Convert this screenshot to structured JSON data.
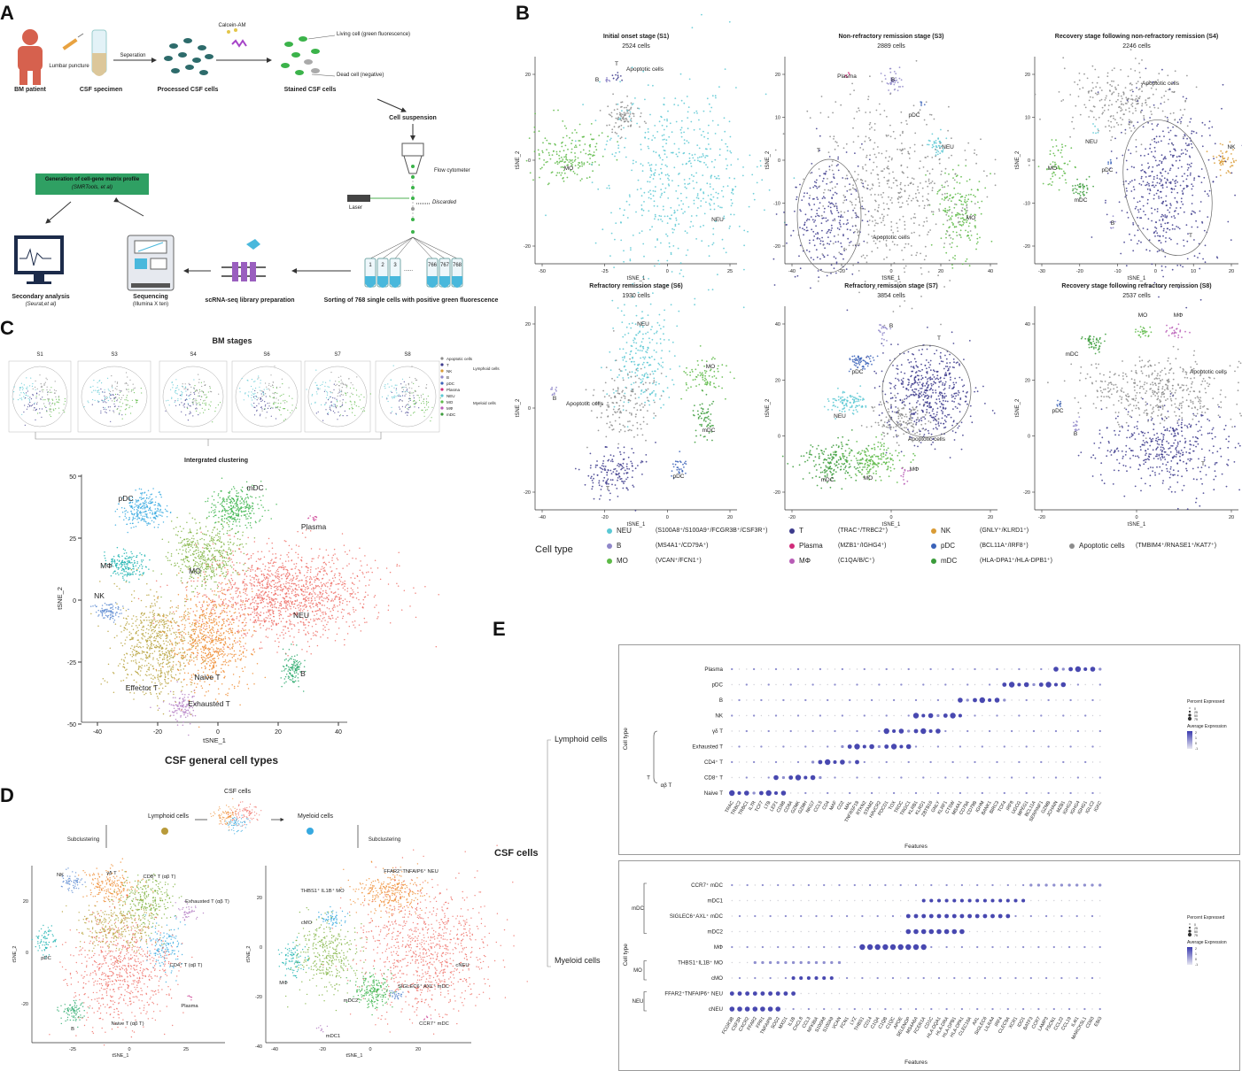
{
  "panels": {
    "a": "A",
    "b": "B",
    "c": "C",
    "d": "D",
    "e": "E"
  },
  "colors": {
    "NEU": "#5bc8d4",
    "B": "#8f87c9",
    "MO": "#5dba47",
    "T": "#3c3a8c",
    "Plasma": "#d12b7a",
    "MPhi": "#b85cb6",
    "NK": "#d99b35",
    "pDC": "#3a62b8",
    "mDC": "#3a9b3a",
    "Apoptotic": "#8c8c8c",
    "c_NEU": "#ef6f66",
    "c_pDC": "#37a9e0",
    "c_mDC": "#39b44a",
    "c_MPhi": "#1bb3b0",
    "c_MO": "#7fb341",
    "c_NK": "#5d8bd1",
    "c_Effector": "#b7a23c",
    "c_Naive": "#ee8c32",
    "c_Exhausted": "#b27ac2",
    "c_B": "#27a86a",
    "c_Plasma": "#d04f9c",
    "green_box": "#2fa063",
    "dot_blue": "#4848b0",
    "dot_grey": "#cfcfd6"
  },
  "panelA": {
    "bm_patient": "BM patient",
    "lumbar": "Lumbar puncture",
    "csf_specimen": "CSF specimen",
    "separation": "Seperation",
    "processed": "Processed CSF cells",
    "calcein": "Calcein-AM",
    "stained": "Stained CSF cells",
    "living": "Living cell (green fluorescence)",
    "dead": "Dead cell (negative)",
    "suspension": "Cell suspension",
    "flow": "Flow cytometer",
    "laser": "Laser",
    "discarded": "Discarded",
    "tubes": [
      "1",
      "2",
      "3",
      "766",
      "767",
      "768"
    ],
    "tube_dots": "......",
    "sorting": "Sorting of 768 single cells with positive green fluorescence",
    "library": "scRNA-seq library preparation",
    "seq": "Sequencing",
    "seq_sub": "(Illumina X ten)",
    "secondary": "Secondary analysis",
    "secondary_sub": "(Seurat,et al)",
    "matrix_title": "Generation of cell-gene matrix profile",
    "matrix_sub": "(SMRTools, et al)"
  },
  "panelB": {
    "plots": [
      {
        "title": "Initial onset stage (S1)",
        "cells": "2524 cells",
        "labels": [
          "B",
          "T",
          "Apoptotic cells",
          "MO",
          "NEU"
        ]
      },
      {
        "title": "Non-refractory remission stage (S3)",
        "cells": "2889 cells",
        "labels": [
          "Plasma",
          "B",
          "pDC",
          "T",
          "NEU",
          "MO",
          "Apoptotic cells"
        ]
      },
      {
        "title": "Recovery stage following non-refractory remission (S4)",
        "cells": "2246 cells",
        "labels": [
          "Apoptotic cells",
          "NEU",
          "MO",
          "pDC",
          "mDC",
          "NK",
          "B",
          "T"
        ]
      },
      {
        "title": "Refractory remission stage (S6)",
        "cells": "1930 cells",
        "labels": [
          "NEU",
          "MO",
          "B",
          "Apoptotic cells",
          "mDC",
          "pDC",
          "T"
        ]
      },
      {
        "title": "Refractory remission stage (S7)",
        "cells": "3854 cells",
        "labels": [
          "B",
          "T",
          "pDC",
          "NEU",
          "Apoptotic cells",
          "mDC",
          "MO",
          "MΦ"
        ]
      },
      {
        "title": "Recovery stage following refractory remission (S8)",
        "cells": "2537 cells",
        "labels": [
          "MO",
          "MΦ",
          "mDC",
          "Apoptotic cells",
          "pDC",
          "B",
          "T"
        ]
      }
    ],
    "xaxis": "tSNE_1",
    "yaxis": "tSNE_2",
    "ticks1x": [
      "-50",
      "-25",
      "0",
      "25"
    ],
    "ticks1y": [
      "20",
      "0",
      "-20"
    ],
    "ticks2x": [
      "-40",
      "-20",
      "0",
      "20",
      "40"
    ],
    "ticks2y": [
      "20",
      "10",
      "0",
      "-10",
      "-20"
    ],
    "ticks3x": [
      "-30",
      "-20",
      "-10",
      "0",
      "10",
      "20"
    ],
    "ticks3y": [
      "20",
      "10",
      "0",
      "-10",
      "-20"
    ],
    "ticks4x": [
      "-40",
      "-20",
      "0",
      "20"
    ],
    "ticks4y": [
      "20",
      "0",
      "-20"
    ],
    "ticks5x": [
      "-20",
      "0",
      "20"
    ],
    "ticks5y": [
      "40",
      "20",
      "0",
      "-20"
    ],
    "ticks6x": [
      "-20",
      "0",
      "20"
    ],
    "ticks6y": [
      "40",
      "20",
      "0",
      "-20"
    ],
    "legend_title": "Cell type",
    "legend": [
      {
        "name": "NEU",
        "markers": "(S100A8⁺/S100A9⁺/FCGR3B⁺/CSF3R⁺)"
      },
      {
        "name": "B",
        "markers": "(MS4A1⁺/CD79A⁺)"
      },
      {
        "name": "MO",
        "markers": "(VCAN⁺/FCN1⁺)"
      },
      {
        "name": "T",
        "markers": "(TRAC⁺/TRBC2⁺)"
      },
      {
        "name": "Plasma",
        "markers": "(MZB1⁺/IGHG4⁺)"
      },
      {
        "name": "MΦ",
        "markers": "(C1QA/B/C⁺)"
      },
      {
        "name": "NK",
        "markers": "(GNLY⁺/KLRD1⁺)"
      },
      {
        "name": "pDC",
        "markers": "(BCL11A⁺/IRF8⁺)"
      },
      {
        "name": "mDC",
        "markers": "(HLA-DPA1⁺/HLA-DPB1⁺)"
      },
      {
        "name": "Apoptotic cells",
        "markers": "(TMBIM4⁺/RNASE1⁺/KAT7⁺)"
      }
    ]
  },
  "panelC": {
    "bm_title": "BM stages",
    "stages": [
      "S1",
      "S3",
      "S4",
      "S6",
      "S7",
      "S8"
    ],
    "mini_legend": [
      "Apoptotic cells",
      "T",
      "NK",
      "B",
      "pDC",
      "Plasma",
      "NEU",
      "MO",
      "MΦ",
      "mDC"
    ],
    "lymphoid": "Lymphoid cells",
    "myeloid": "Myeloid cells",
    "integrated": "Intergrated clustering",
    "clusters": [
      "pDC",
      "mDC",
      "Plasma",
      "MΦ",
      "MO",
      "NK",
      "NEU",
      "Effector T",
      "Naive T",
      "B",
      "Exhausted T"
    ],
    "xaxis": "tSNE_1",
    "yaxis": "tSNE_2",
    "xticks": [
      "-40",
      "-20",
      "0",
      "20",
      "40"
    ],
    "yticks": [
      "50",
      "25",
      "0",
      "-25",
      "-50"
    ],
    "caption": "CSF general cell types"
  },
  "panelD": {
    "csf": "CSF cells",
    "lymphoid": "Lymphoid cells",
    "myeloid": "Myeloid cells",
    "sub": "Subclustering",
    "left_labels": [
      "γδ T",
      "NK",
      "CD8⁺ T (αβ T)",
      "Exhausted T (αβ T)",
      "pDC",
      "CD4⁺ T (αβ T)",
      "Plasma",
      "B",
      "Naive T (αβ T)"
    ],
    "right_labels": [
      "FFAR2⁺TNFAIP6⁺ NEU",
      "THBS1⁺ IL1B⁺ MO",
      "cMO",
      "cNEU",
      "MΦ",
      "mDC2",
      "SIGLEC6⁺ AXL⁺ mDC",
      "CCR7⁺ mDC",
      "mDC1"
    ],
    "left_xticks": [
      "-25",
      "0",
      "25"
    ],
    "left_yticks": [
      "20",
      "0",
      "-20"
    ],
    "right_xticks": [
      "-40",
      "-20",
      "0",
      "20"
    ],
    "right_yticks": [
      "20",
      "0",
      "-20",
      "-40"
    ],
    "xaxis": "tSNE_1",
    "yaxis": "tSNE_2"
  },
  "panelE": {
    "csf": "CSF cells",
    "lymphoid": "Lymphoid cells",
    "myeloid": "Myeloid cells",
    "cell_type": "Cell type",
    "features": "Features",
    "legend_pct": "Percent Expressed",
    "legend_avg": "Average Expression",
    "pct_vals": [
      "0",
      "25",
      "50",
      "75"
    ],
    "avg_vals": [
      "2",
      "1",
      "0",
      "-1"
    ],
    "top_rows": [
      "Plasma",
      "pDC",
      "B",
      "NK",
      "γδ T",
      "Exhausted T",
      "CD4⁺ T",
      "CD8⁺ T",
      "Naive T"
    ],
    "top_group_t": "T",
    "top_group_ab": "αβ T",
    "top_features": [
      "TRAC",
      "TRBC2",
      "TRBC1",
      "IL7R",
      "TCF7",
      "LTB",
      "LEF1",
      "CD8B",
      "CD8A",
      "GZMK",
      "GZMH",
      "NKG7",
      "CCL5",
      "CD4",
      "MAF",
      "CD2",
      "MAL",
      "TNFRSF18",
      "RTKN2",
      "STAM2",
      "HAVCR2",
      "PDCD1",
      "TOX",
      "TRDC",
      "TRGC1",
      "KLRB1",
      "KLRD1",
      "ZBTB16",
      "GNLY",
      "KLRF1",
      "CTSW",
      "MS4A1",
      "CD79A",
      "CD79B",
      "IGHM",
      "BANK1",
      "BIRC3",
      "TCF4",
      "IRF8",
      "UGCG",
      "MPEG1",
      "BCL11A",
      "SERPINF1",
      "GZMB",
      "JCHAIN",
      "MZB1",
      "IGHG3",
      "IGHG4",
      "IGHG1",
      "IGLC2",
      "IGKC"
    ],
    "bottom_rows": [
      "CCR7⁺ mDC",
      "mDC1",
      "SIGLEC6⁺AXL⁺ mDC",
      "mDC2",
      "MΦ",
      "THBS1⁺IL1B⁺ MO",
      "cMO",
      "FFAR2⁺TNFAIP6⁺ NEU",
      "cNEU"
    ],
    "bottom_group_mdc": "mDC",
    "bottom_group_mo": "MO",
    "bottom_group_neu": "NEU",
    "bottom_features": [
      "FCGR3B",
      "CSF3R",
      "CXCR2",
      "FFAR2",
      "FPR1",
      "TNFAIP6",
      "SOD2",
      "MXD1",
      "IL1B",
      "CXCL8",
      "CCL3",
      "NFKBIA",
      "S100A8",
      "S100A9",
      "VCAN",
      "FCN1",
      "LYZ",
      "THBS1",
      "CD14",
      "C1QA",
      "C1QB",
      "C1QC",
      "APOE",
      "SELENOP",
      "MS4A6A",
      "FCER1A",
      "CD1C",
      "HLA-DQA1",
      "HLA-DRA",
      "HLA-DPB1",
      "HLA-DPA1",
      "CLEC10A",
      "AXL",
      "SIGLEC6",
      "LILRA4",
      "IRF4",
      "CLEC9A",
      "XCR1",
      "IDO1",
      "BATF3",
      "CCR7",
      "LAMP3",
      "FSCN1",
      "CCL22",
      "CCL19",
      "IL4I1",
      "MARCKSL1",
      "CD83",
      "EBI3"
    ]
  }
}
